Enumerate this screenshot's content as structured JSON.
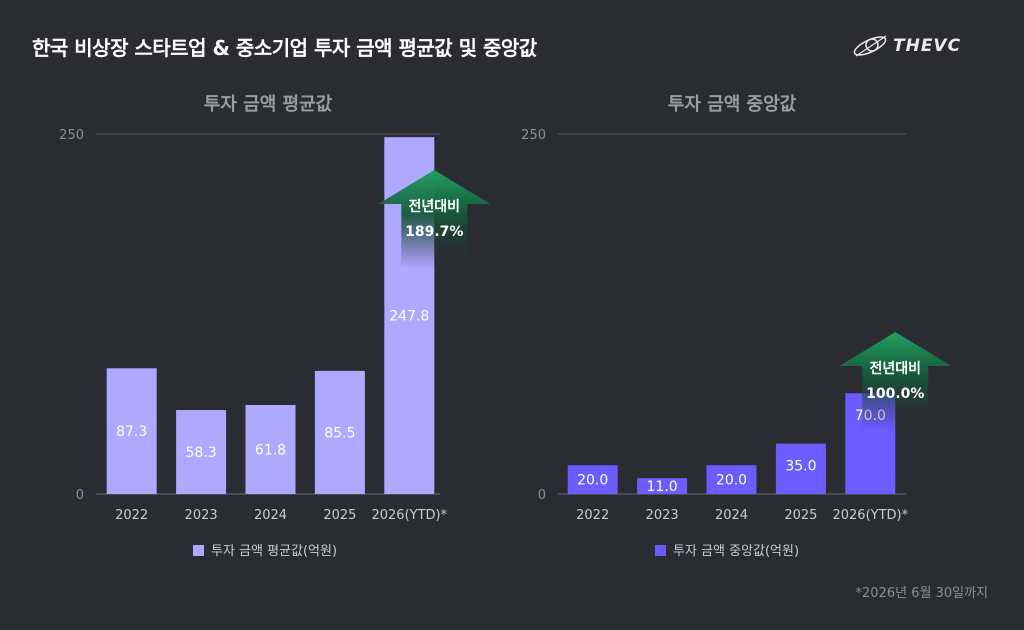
{
  "title": "한국 비상장 스타트업 & 중소기업 투자 금액 평균값 및 중앙값",
  "logo": {
    "text": "THEVC",
    "icon": "orbit-logo-icon"
  },
  "footnote": "*2026년 6월 30일까지",
  "colors": {
    "background": "#2a2c31",
    "mean_bar": "#aea8ff",
    "median_bar": "#6a5cff",
    "arrow_top": "#21a060",
    "arrow_bottom": "#2a2c31"
  },
  "chart_data": [
    {
      "type": "bar",
      "title": "투자 금액 평균값",
      "categories": [
        "2022",
        "2023",
        "2024",
        "2025",
        "2026(YTD)*"
      ],
      "series": [
        {
          "name": "투자 금액 평균값(억원)",
          "values": [
            87.3,
            58.3,
            61.8,
            85.5,
            247.8
          ]
        }
      ],
      "value_labels": [
        "87.3",
        "58.3",
        "61.8",
        "85.5",
        "247.8"
      ],
      "ylim": [
        0,
        250
      ],
      "yticks": [
        "0",
        "250"
      ],
      "legend_position": "bottom",
      "annotation": {
        "category": "2026(YTD)*",
        "label": "전년대비",
        "value": "189.7%"
      }
    },
    {
      "type": "bar",
      "title": "투자 금액 중앙값",
      "categories": [
        "2022",
        "2023",
        "2024",
        "2025",
        "2026(YTD)*"
      ],
      "series": [
        {
          "name": "투자 금액 중앙값(억원)",
          "values": [
            20.0,
            11.0,
            20.0,
            35.0,
            70.0
          ]
        }
      ],
      "value_labels": [
        "20.0",
        "11.0",
        "20.0",
        "35.0",
        "70.0"
      ],
      "ylim": [
        0,
        250
      ],
      "yticks": [
        "0",
        "250"
      ],
      "legend_position": "bottom",
      "annotation": {
        "category": "2026(YTD)*",
        "label": "전년대비",
        "value": "100.0%"
      }
    }
  ]
}
